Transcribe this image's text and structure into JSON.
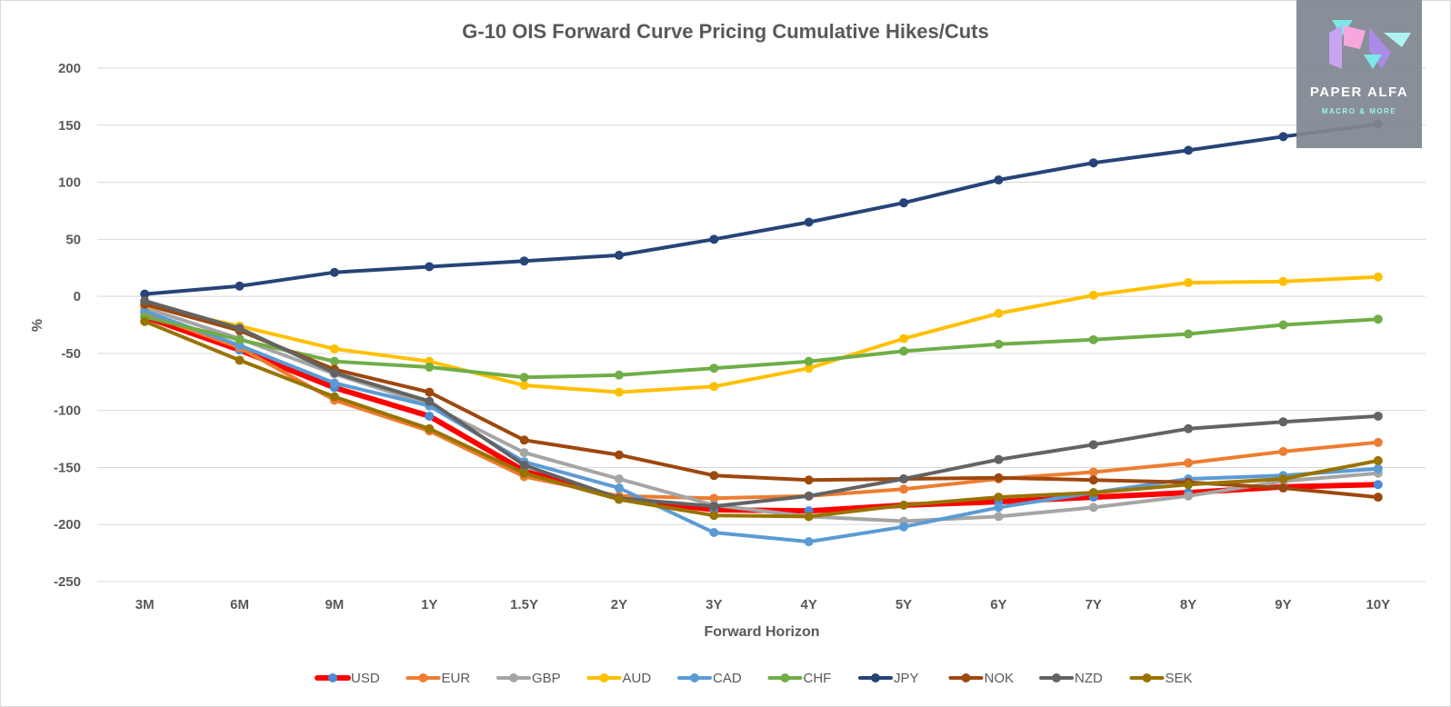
{
  "chart_data": {
    "type": "line",
    "title": "G-10 OIS Forward Curve Pricing Cumulative Hikes/Cuts",
    "xlabel": "Forward Horizon",
    "ylabel": "%",
    "ylim": [
      -250,
      200
    ],
    "yticks": [
      200,
      150,
      100,
      50,
      0,
      -50,
      -100,
      -150,
      -200,
      -250
    ],
    "categories": [
      "3M",
      "6M",
      "9M",
      "1Y",
      "1.5Y",
      "2Y",
      "3Y",
      "4Y",
      "5Y",
      "6Y",
      "7Y",
      "8Y",
      "9Y",
      "10Y"
    ],
    "grid": true,
    "legend_position": "bottom",
    "series": [
      {
        "name": "USD",
        "color": "#ff0000",
        "marker_color": "#4a8bd6",
        "values": [
          -18,
          -47,
          -80,
          -105,
          -153,
          -177,
          -187,
          -188,
          -183,
          -180,
          -176,
          -172,
          -167,
          -165
        ]
      },
      {
        "name": "EUR",
        "color": "#ed7d31",
        "values": [
          -15,
          -45,
          -91,
          -118,
          -158,
          -175,
          -177,
          -175,
          -169,
          -160,
          -154,
          -146,
          -136,
          -128
        ]
      },
      {
        "name": "GBP",
        "color": "#a5a5a5",
        "values": [
          -10,
          -37,
          -68,
          -95,
          -137,
          -160,
          -183,
          -193,
          -197,
          -193,
          -185,
          -175,
          -162,
          -155
        ]
      },
      {
        "name": "AUD",
        "color": "#ffc000",
        "values": [
          -8,
          -26,
          -46,
          -57,
          -78,
          -84,
          -79,
          -63,
          -37,
          -15,
          1,
          12,
          13,
          17
        ]
      },
      {
        "name": "CAD",
        "color": "#5b9bd5",
        "values": [
          -13,
          -43,
          -76,
          -96,
          -145,
          -168,
          -207,
          -215,
          -202,
          -185,
          -172,
          -160,
          -157,
          -151
        ]
      },
      {
        "name": "CHF",
        "color": "#70ad47",
        "values": [
          -18,
          -38,
          -57,
          -62,
          -71,
          -69,
          -63,
          -57,
          -48,
          -42,
          -38,
          -33,
          -25,
          -20
        ]
      },
      {
        "name": "JPY",
        "color": "#264478",
        "values": [
          2,
          9,
          21,
          26,
          31,
          36,
          50,
          65,
          82,
          102,
          117,
          128,
          140,
          151
        ]
      },
      {
        "name": "NOK",
        "color": "#9e480e",
        "values": [
          -7,
          -30,
          -64,
          -84,
          -126,
          -139,
          -157,
          -161,
          -160,
          -159,
          -161,
          -163,
          -168,
          -176
        ]
      },
      {
        "name": "NZD",
        "color": "#636363",
        "values": [
          -4,
          -28,
          -67,
          -92,
          -148,
          -177,
          -184,
          -175,
          -160,
          -143,
          -130,
          -116,
          -110,
          -105
        ]
      },
      {
        "name": "SEK",
        "color": "#997300",
        "values": [
          -22,
          -56,
          -88,
          -116,
          -155,
          -178,
          -192,
          -193,
          -183,
          -176,
          -172,
          -165,
          -160,
          -144
        ]
      }
    ]
  },
  "logo": {
    "name": "PAPER ALFA",
    "tagline": "MACRO & MORE"
  }
}
